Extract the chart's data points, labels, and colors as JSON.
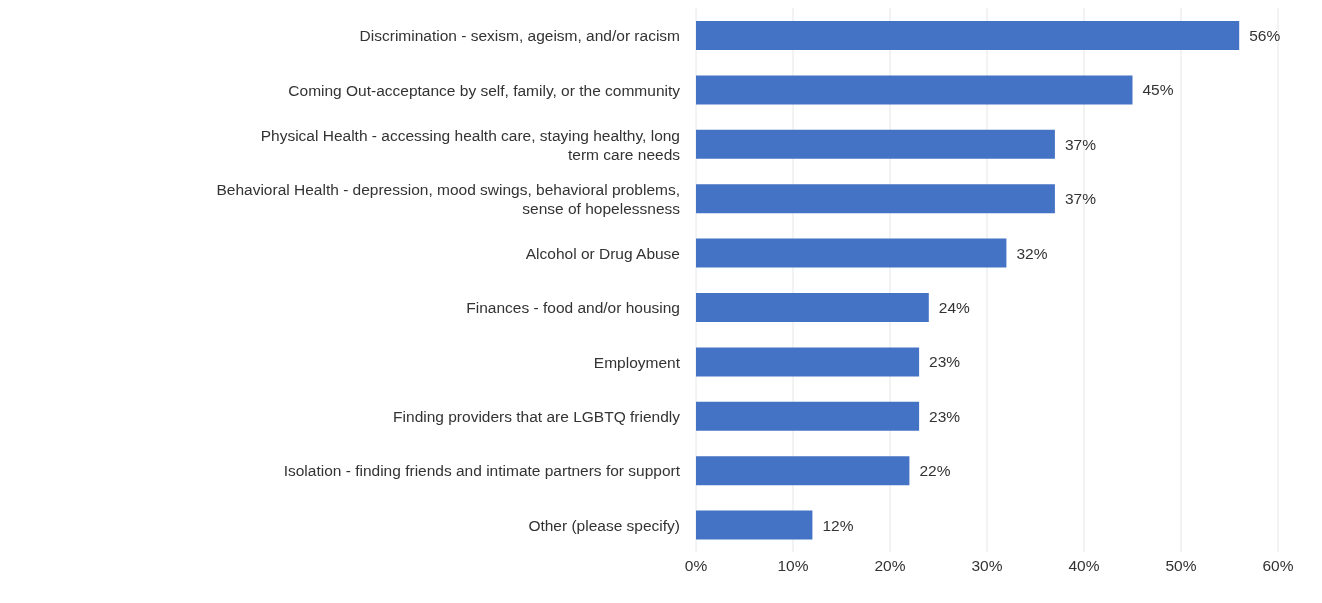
{
  "chart_data": {
    "type": "bar",
    "orientation": "horizontal",
    "categories": [
      "Discrimination - sexism, ageism, and/or racism",
      "Coming Out-acceptance by self, family, or the community",
      "Physical Health - accessing health care, staying healthy, long term care needs",
      "Behavioral Health - depression, mood swings, behavioral problems, sense of hopelessness",
      "Alcohol or Drug Abuse",
      "Finances - food and/or housing",
      "Employment",
      "Finding providers that are LGBTQ friendly",
      "Isolation - finding friends and intimate partners for support",
      "Other (please specify)"
    ],
    "values": [
      56,
      45,
      37,
      37,
      32,
      24,
      23,
      23,
      22,
      12
    ],
    "value_labels": [
      "56%",
      "45%",
      "37%",
      "37%",
      "32%",
      "24%",
      "23%",
      "23%",
      "22%",
      "12%"
    ],
    "color": "#4472c4",
    "xlim": [
      0,
      60
    ],
    "xticks": [
      {
        "value": 0,
        "label": "0%"
      },
      {
        "value": 10,
        "label": "10%"
      },
      {
        "value": 20,
        "label": "20%"
      },
      {
        "value": 30,
        "label": "30%"
      },
      {
        "value": 40,
        "label": "40%"
      },
      {
        "value": 50,
        "label": "50%"
      },
      {
        "value": 60,
        "label": "60%"
      }
    ],
    "grid": "x"
  }
}
